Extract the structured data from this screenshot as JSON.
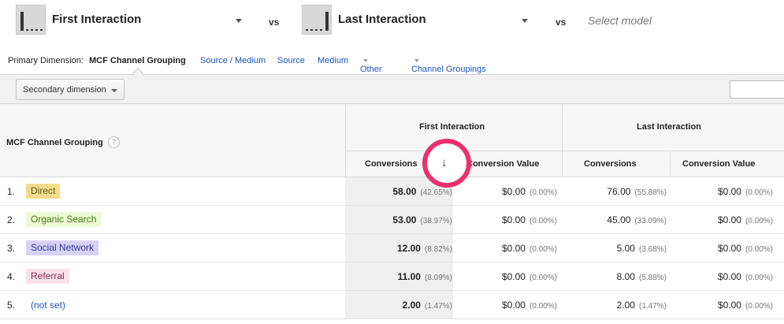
{
  "models": [
    {
      "name": "First Interaction"
    },
    {
      "name": "Last Interaction"
    }
  ],
  "vs_label": "vs",
  "select_model_placeholder": "Select model",
  "primary_dimension": {
    "label": "Primary Dimension:",
    "active": "MCF Channel Grouping",
    "links": [
      "Source / Medium",
      "Source",
      "Medium",
      "Other"
    ],
    "channel_groupings": "Channel Groupings"
  },
  "secondary_dimension_label": "Secondary dimension",
  "table": {
    "dimension_header": "MCF Channel Grouping",
    "help_glyph": "?",
    "groups": [
      "First Interaction",
      "Last Interaction"
    ],
    "metric_headers": [
      "Conversions",
      "Conversion Value",
      "Conversions",
      "Conversion Value"
    ],
    "sort_arrow": "↓",
    "rows": [
      {
        "num": "1.",
        "channel": "Direct",
        "color": "#f3dc8c",
        "text_color": "#6b5a1c",
        "fi_conv": "58.00",
        "fi_conv_pct": "(42.65%)",
        "fi_val": "$0.00",
        "fi_val_pct": "(0.00%)",
        "li_conv": "76.00",
        "li_conv_pct": "(55.88%)",
        "li_val": "$0.00",
        "li_val_pct": "(0.00%)"
      },
      {
        "num": "2.",
        "channel": "Organic Search",
        "color": "#eef8d2",
        "text_color": "#3f7a1a",
        "fi_conv": "53.00",
        "fi_conv_pct": "(38.97%)",
        "fi_val": "$0.00",
        "fi_val_pct": "(0.00%)",
        "li_conv": "45.00",
        "li_conv_pct": "(33.09%)",
        "li_val": "$0.00",
        "li_val_pct": "(0.00%)"
      },
      {
        "num": "3.",
        "channel": "Social Network",
        "color": "#d6d2f6",
        "text_color": "#3a34a0",
        "fi_conv": "12.00",
        "fi_conv_pct": "(8.82%)",
        "fi_val": "$0.00",
        "fi_val_pct": "(0.00%)",
        "li_conv": "5.00",
        "li_conv_pct": "(3.68%)",
        "li_val": "$0.00",
        "li_val_pct": "(0.00%)"
      },
      {
        "num": "4.",
        "channel": "Referral",
        "color": "#f9e1ea",
        "text_color": "#8a2f52",
        "fi_conv": "11.00",
        "fi_conv_pct": "(8.09%)",
        "fi_val": "$0.00",
        "fi_val_pct": "(0.00%)",
        "li_conv": "8.00",
        "li_conv_pct": "(5.88%)",
        "li_val": "$0.00",
        "li_val_pct": "(0.00%)"
      },
      {
        "num": "5.",
        "channel": "(not set)",
        "color": "",
        "text_color": "#1a55c4",
        "fi_conv": "2.00",
        "fi_conv_pct": "(1.47%)",
        "fi_val": "$0.00",
        "fi_val_pct": "(0.00%)",
        "li_conv": "2.00",
        "li_conv_pct": "(1.47%)",
        "li_val": "$0.00",
        "li_val_pct": "(0.00%)"
      }
    ]
  }
}
